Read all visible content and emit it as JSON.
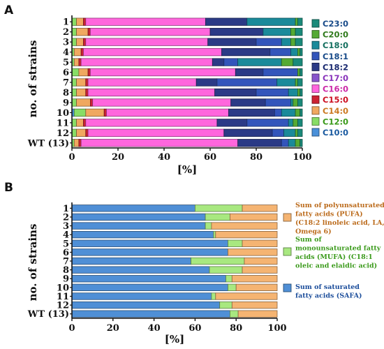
{
  "panels": {
    "A": {
      "letter": "A"
    },
    "B": {
      "letter": "B"
    }
  },
  "chart_data": [
    {
      "type": "bar",
      "orientation": "horizontal",
      "stacked": true,
      "panel": "A",
      "ylabel": "no. of strains",
      "xlabel": "[%]",
      "xlim": [
        0,
        100
      ],
      "xticks": [
        "0",
        "20",
        "40",
        "60",
        "80",
        "100"
      ],
      "categories": [
        "1",
        "2",
        "3",
        "4",
        "5",
        "6",
        "7",
        "8",
        "9",
        "10",
        "11",
        "12",
        "WT (13)"
      ],
      "legend_position": "right",
      "series": [
        {
          "name": "C10:0",
          "color": "#4a90d9",
          "values": [
            0,
            0,
            0,
            0,
            0,
            0,
            0,
            0,
            0,
            1,
            0,
            0,
            0
          ]
        },
        {
          "name": "C12:0",
          "color": "#88dd66",
          "values": [
            2,
            2,
            2,
            1,
            1,
            3,
            2,
            2,
            2,
            5,
            2,
            2,
            1
          ]
        },
        {
          "name": "C14:0",
          "color": "#f0a860",
          "values": [
            3,
            5,
            3,
            3,
            2,
            4,
            4,
            4,
            6,
            8,
            3,
            4,
            2
          ]
        },
        {
          "name": "C15:0",
          "color": "#cc2233",
          "values": [
            1,
            1,
            1,
            1,
            1,
            1,
            1,
            1,
            1,
            1,
            1,
            1,
            1
          ]
        },
        {
          "name": "C16:0",
          "color": "#ff66dd",
          "values": [
            52,
            52,
            53,
            60,
            57,
            63,
            47,
            55,
            60,
            53,
            57,
            59,
            68
          ]
        },
        {
          "name": "C17:0",
          "color": "#8855cc",
          "values": [
            0,
            0,
            0,
            0,
            0,
            0,
            0,
            0,
            0,
            0,
            0,
            0,
            0
          ]
        },
        {
          "name": "C18:2",
          "color": "#2b3a86",
          "values": [
            18,
            23,
            21,
            21,
            5,
            12,
            9,
            18,
            15,
            20,
            13,
            21,
            19
          ]
        },
        {
          "name": "C18:1",
          "color": "#3355bb",
          "values": [
            0,
            0,
            11,
            9,
            6,
            15,
            26,
            14,
            11,
            3,
            18,
            5,
            3
          ]
        },
        {
          "name": "C18:0",
          "color": "#1a8a9a",
          "values": [
            21,
            12,
            4,
            3,
            19,
            0,
            8,
            4,
            1,
            6,
            2,
            5,
            3
          ]
        },
        {
          "name": "C20:0",
          "color": "#55aa33",
          "values": [
            1,
            2,
            2,
            1,
            5,
            1,
            1,
            1,
            2,
            2,
            2,
            1,
            2
          ]
        },
        {
          "name": "C23:0",
          "color": "#1a8a7a",
          "values": [
            2,
            3,
            3,
            1,
            4,
            1,
            2,
            1,
            2,
            1,
            2,
            2,
            1
          ]
        }
      ],
      "legend_order": [
        "C23:0",
        "C20:0",
        "C18:0",
        "C18:1",
        "C18:2",
        "C17:0",
        "C16:0",
        "C15:0",
        "C14:0",
        "C12:0",
        "C10:0"
      ],
      "legend_text_colors": {
        "C23:0": "#1a4c8a",
        "C20:0": "#2f7a1c",
        "C18:0": "#157060",
        "C18:1": "#1a4c8a",
        "C18:2": "#1a2a70",
        "C17:0": "#8833bb",
        "C16:0": "#cc2aa8",
        "C15:0": "#cc1122",
        "C14:0": "#cc7a22",
        "C12:0": "#3a9a1a",
        "C10:0": "#1a5aa0"
      }
    },
    {
      "type": "bar",
      "orientation": "horizontal",
      "stacked": true,
      "panel": "B",
      "ylabel": "no. of strains",
      "xlabel": "[%]",
      "xlim": [
        0,
        100
      ],
      "xticks": [
        "0",
        "20",
        "40",
        "60",
        "80",
        "100"
      ],
      "categories": [
        "1",
        "2",
        "3",
        "4",
        "5",
        "6",
        "7",
        "8",
        "9",
        "10",
        "11",
        "12",
        "WT (13)"
      ],
      "legend_position": "right",
      "series": [
        {
          "name": "Sum of saturated fatty acids (SAFA)",
          "color": "#4f8fd6",
          "textColor": "#1a4c9a",
          "values": [
            60,
            65,
            65,
            69,
            76,
            76,
            58,
            67,
            75,
            76,
            68,
            72,
            77
          ]
        },
        {
          "name": "Sum of monounsaturated fatty acids (MUFA) (C18:1 oleic and elaidic acid)",
          "color": "#a8e880",
          "textColor": "#3a9a1a",
          "values": [
            23,
            12,
            3,
            1,
            7,
            0,
            26,
            16,
            3,
            4,
            2,
            6,
            4
          ]
        },
        {
          "name": "Sum of polyunsaturated fatty acids (PUFA) (C18:2 linoleic acid, LA, Omega 6)",
          "color": "#f5b472",
          "textColor": "#bb6a1a",
          "values": [
            17,
            23,
            32,
            30,
            17,
            24,
            16,
            17,
            22,
            20,
            30,
            22,
            19
          ]
        }
      ],
      "legend_order": [
        {
          "lines": [
            "Sum of polyunsaturated",
            "fatty acids (PUFA)",
            "(C18:2 linoleic acid, LA,",
            "Omega 6)"
          ],
          "series": "Sum of polyunsaturated fatty acids (PUFA) (C18:2 linoleic acid, LA, Omega 6)"
        },
        {
          "lines": [
            "Sum of",
            "monounsaturated fatty",
            "acids (MUFA) (C18:1",
            "oleic and elaidic acid)"
          ],
          "series": "Sum of monounsaturated fatty acids (MUFA) (C18:1 oleic and elaidic acid)"
        },
        {
          "lines": [
            "Sum of saturated",
            "fatty acids (SAFA)"
          ],
          "series": "Sum of saturated fatty acids (SAFA)"
        }
      ]
    }
  ]
}
